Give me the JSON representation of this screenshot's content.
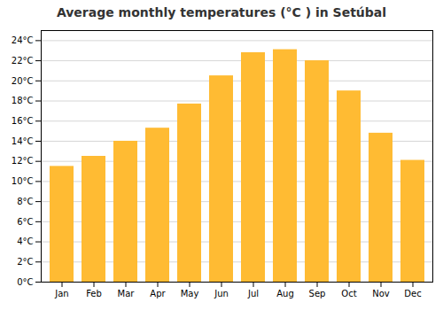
{
  "chart_data": {
    "type": "bar",
    "title": "Average monthly temperatures (°C ) in Setúbal",
    "categories": [
      "Jan",
      "Feb",
      "Mar",
      "Apr",
      "May",
      "Jun",
      "Jul",
      "Aug",
      "Sep",
      "Oct",
      "Nov",
      "Dec"
    ],
    "values": [
      11.5,
      12.5,
      14.0,
      15.3,
      17.7,
      20.5,
      22.8,
      23.1,
      22.0,
      19.0,
      14.8,
      12.1
    ],
    "color": "#FFBB33",
    "ylim": [
      0,
      25
    ],
    "yticks": [
      {
        "value": 0,
        "label": "0°C"
      },
      {
        "value": 2,
        "label": "2°C"
      },
      {
        "value": 4,
        "label": "4°C"
      },
      {
        "value": 6,
        "label": "6°C"
      },
      {
        "value": 8,
        "label": "8°C"
      },
      {
        "value": 10,
        "label": "10°C"
      },
      {
        "value": 12,
        "label": "12°C"
      },
      {
        "value": 14,
        "label": "14°C"
      },
      {
        "value": 16,
        "label": "16°C"
      },
      {
        "value": 18,
        "label": "18°C"
      },
      {
        "value": 20,
        "label": "20°C"
      },
      {
        "value": 22,
        "label": "22°C"
      },
      {
        "value": 24,
        "label": "24°C"
      }
    ],
    "grid": true
  }
}
